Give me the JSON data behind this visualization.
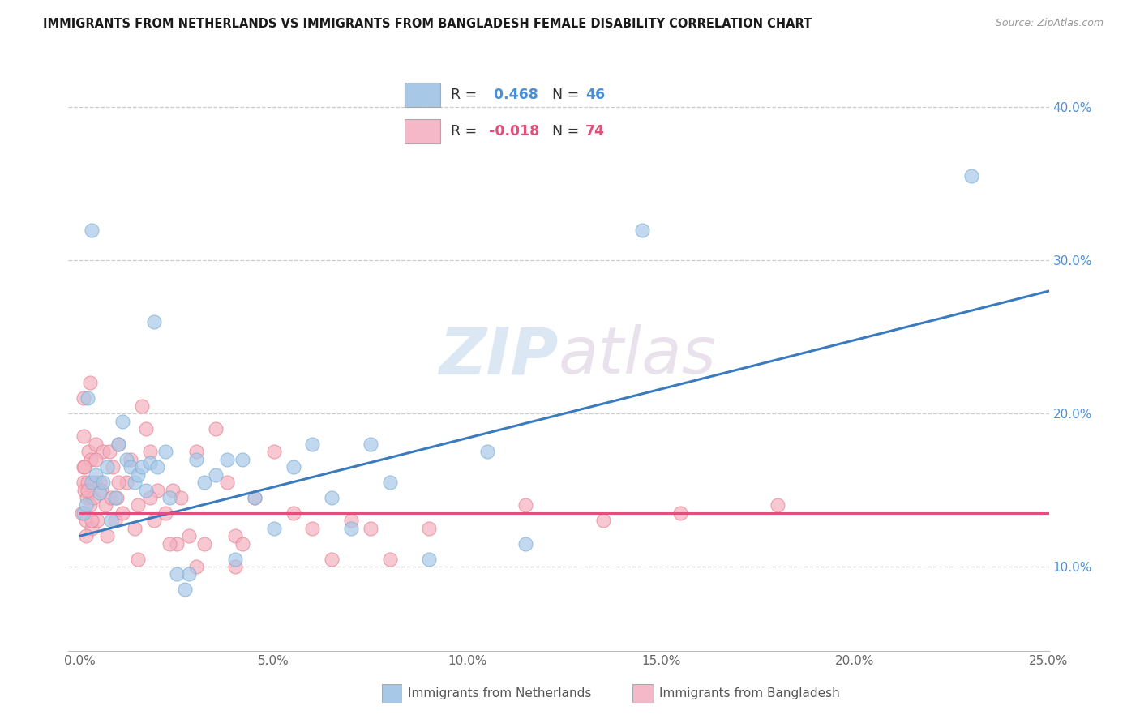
{
  "title": "IMMIGRANTS FROM NETHERLANDS VS IMMIGRANTS FROM BANGLADESH FEMALE DISABILITY CORRELATION CHART",
  "source": "Source: ZipAtlas.com",
  "xlabel_ticks": [
    "0.0%",
    "5.0%",
    "10.0%",
    "15.0%",
    "20.0%",
    "25.0%"
  ],
  "xlabel_vals": [
    0,
    5,
    10,
    15,
    20,
    25
  ],
  "ylabel_ticks": [
    "10.0%",
    "20.0%",
    "30.0%",
    "40.0%"
  ],
  "ylabel_vals": [
    10,
    20,
    30,
    40
  ],
  "watermark": "ZIPatlas",
  "legend": {
    "nl_r": "R = ",
    "nl_r_val": " 0.468",
    "nl_n": "N = ",
    "nl_n_val": "46",
    "bd_r": "R = ",
    "bd_r_val": "-0.018",
    "bd_n": "N = ",
    "bd_n_val": "74",
    "nl_color": "#a8c8e8",
    "bd_color": "#f4b8c8"
  },
  "nl_color": "#a8c8e8",
  "bd_color": "#f4b0c0",
  "nl_edge_color": "#7bafd4",
  "bd_edge_color": "#e88090",
  "nl_line_color": "#3a7bbf",
  "bd_line_color": "#e0507a",
  "nl_scatter": [
    [
      0.1,
      13.5
    ],
    [
      0.15,
      14.0
    ],
    [
      0.2,
      21.0
    ],
    [
      0.3,
      15.5
    ],
    [
      0.4,
      16.0
    ],
    [
      0.5,
      14.8
    ],
    [
      0.6,
      15.5
    ],
    [
      0.7,
      16.5
    ],
    [
      0.8,
      13.0
    ],
    [
      0.9,
      14.5
    ],
    [
      1.0,
      18.0
    ],
    [
      1.1,
      19.5
    ],
    [
      1.2,
      17.0
    ],
    [
      1.3,
      16.5
    ],
    [
      1.4,
      15.5
    ],
    [
      1.5,
      16.0
    ],
    [
      1.6,
      16.5
    ],
    [
      1.7,
      15.0
    ],
    [
      1.8,
      16.8
    ],
    [
      2.0,
      16.5
    ],
    [
      2.2,
      17.5
    ],
    [
      2.3,
      14.5
    ],
    [
      2.5,
      9.5
    ],
    [
      2.7,
      8.5
    ],
    [
      2.8,
      9.5
    ],
    [
      3.0,
      17.0
    ],
    [
      3.2,
      15.5
    ],
    [
      3.5,
      16.0
    ],
    [
      3.8,
      17.0
    ],
    [
      4.0,
      10.5
    ],
    [
      4.2,
      17.0
    ],
    [
      4.5,
      14.5
    ],
    [
      5.0,
      12.5
    ],
    [
      5.5,
      16.5
    ],
    [
      6.0,
      18.0
    ],
    [
      6.5,
      14.5
    ],
    [
      7.0,
      12.5
    ],
    [
      7.5,
      18.0
    ],
    [
      8.0,
      15.5
    ],
    [
      9.0,
      10.5
    ],
    [
      0.3,
      32.0
    ],
    [
      1.9,
      26.0
    ],
    [
      10.5,
      17.5
    ],
    [
      11.5,
      11.5
    ],
    [
      14.5,
      32.0
    ],
    [
      23.0,
      35.5
    ]
  ],
  "bd_scatter": [
    [
      0.05,
      13.5
    ],
    [
      0.08,
      15.5
    ],
    [
      0.1,
      16.5
    ],
    [
      0.12,
      15.0
    ],
    [
      0.15,
      13.0
    ],
    [
      0.18,
      14.5
    ],
    [
      0.2,
      15.5
    ],
    [
      0.22,
      17.5
    ],
    [
      0.25,
      14.0
    ],
    [
      0.28,
      17.0
    ],
    [
      0.3,
      12.5
    ],
    [
      0.35,
      14.5
    ],
    [
      0.38,
      15.5
    ],
    [
      0.4,
      18.0
    ],
    [
      0.45,
      13.0
    ],
    [
      0.5,
      15.5
    ],
    [
      0.55,
      15.0
    ],
    [
      0.6,
      17.5
    ],
    [
      0.65,
      14.0
    ],
    [
      0.7,
      12.0
    ],
    [
      0.75,
      17.5
    ],
    [
      0.8,
      14.5
    ],
    [
      0.85,
      16.5
    ],
    [
      0.9,
      13.0
    ],
    [
      0.95,
      14.5
    ],
    [
      1.0,
      18.0
    ],
    [
      1.1,
      13.5
    ],
    [
      1.2,
      15.5
    ],
    [
      1.3,
      17.0
    ],
    [
      1.4,
      12.5
    ],
    [
      1.5,
      14.0
    ],
    [
      1.6,
      20.5
    ],
    [
      1.7,
      19.0
    ],
    [
      1.8,
      17.5
    ],
    [
      1.9,
      13.0
    ],
    [
      2.0,
      15.0
    ],
    [
      2.2,
      13.5
    ],
    [
      2.4,
      15.0
    ],
    [
      2.5,
      11.5
    ],
    [
      2.6,
      14.5
    ],
    [
      2.8,
      12.0
    ],
    [
      3.0,
      17.5
    ],
    [
      3.2,
      11.5
    ],
    [
      3.5,
      19.0
    ],
    [
      3.8,
      15.5
    ],
    [
      4.0,
      12.0
    ],
    [
      4.2,
      11.5
    ],
    [
      4.5,
      14.5
    ],
    [
      5.0,
      17.5
    ],
    [
      5.5,
      13.5
    ],
    [
      6.0,
      12.5
    ],
    [
      6.5,
      10.5
    ],
    [
      7.0,
      13.0
    ],
    [
      7.5,
      12.5
    ],
    [
      8.0,
      10.5
    ],
    [
      9.0,
      12.5
    ],
    [
      0.15,
      12.0
    ],
    [
      0.25,
      22.0
    ],
    [
      1.0,
      15.5
    ],
    [
      1.8,
      14.5
    ],
    [
      2.3,
      11.5
    ],
    [
      3.0,
      10.0
    ],
    [
      4.0,
      10.0
    ],
    [
      11.5,
      14.0
    ],
    [
      13.5,
      13.0
    ],
    [
      15.5,
      13.5
    ],
    [
      18.0,
      14.0
    ],
    [
      0.1,
      21.0
    ],
    [
      0.08,
      18.5
    ],
    [
      0.12,
      16.5
    ],
    [
      0.2,
      15.0
    ],
    [
      0.3,
      13.0
    ],
    [
      0.4,
      17.0
    ],
    [
      1.5,
      10.5
    ]
  ],
  "nl_line": {
    "x0": 0,
    "y0": 12.0,
    "x1": 25,
    "y1": 28.0
  },
  "bd_line": {
    "x0": 0,
    "y0": 13.5,
    "x1": 25,
    "y1": 13.5
  },
  "ylim": [
    4.5,
    43
  ],
  "xlim": [
    -0.3,
    25
  ],
  "figsize": [
    14.06,
    8.92
  ],
  "dpi": 100
}
